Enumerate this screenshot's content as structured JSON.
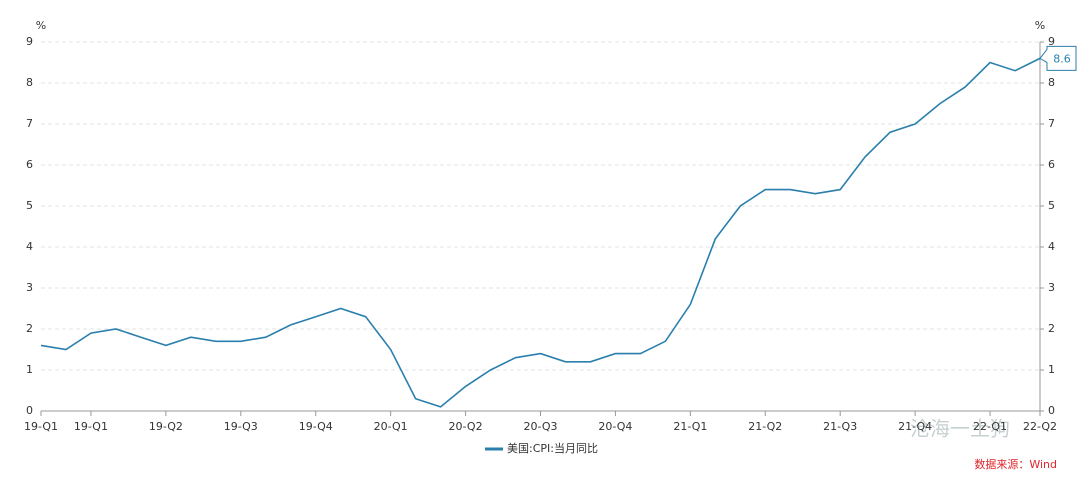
{
  "chart_data": {
    "type": "line",
    "categories": [
      "19-Q1",
      null,
      "19-Q1",
      null,
      null,
      "19-Q2",
      null,
      null,
      "19-Q3",
      null,
      null,
      "19-Q4",
      null,
      null,
      "20-Q1",
      null,
      null,
      "20-Q2",
      null,
      null,
      "20-Q3",
      null,
      null,
      "20-Q4",
      null,
      null,
      "21-Q1",
      null,
      null,
      "21-Q2",
      null,
      null,
      "21-Q3",
      null,
      null,
      "21-Q4",
      null,
      null,
      "22-Q1",
      null,
      "22-Q2"
    ],
    "series": [
      {
        "name": "美国:CPI:当月同比",
        "color": "#2a7fad",
        "values": [
          1.6,
          1.5,
          1.9,
          2.0,
          1.8,
          1.6,
          1.8,
          1.7,
          1.7,
          1.8,
          2.1,
          2.3,
          2.5,
          2.3,
          1.5,
          0.3,
          0.1,
          0.6,
          1.0,
          1.3,
          1.4,
          1.2,
          1.2,
          1.4,
          1.4,
          1.7,
          2.6,
          4.2,
          5.0,
          5.4,
          5.4,
          5.3,
          5.4,
          6.2,
          6.8,
          7.0,
          7.5,
          7.9,
          8.5,
          8.3,
          8.6
        ]
      }
    ],
    "ylabel": "%",
    "y2label": "%",
    "ylim": [
      0,
      9
    ],
    "yticks": [
      0,
      1,
      2,
      3,
      4,
      5,
      6,
      7,
      8,
      9
    ],
    "y2lim": [
      0,
      9
    ],
    "y2ticks": [
      0,
      1,
      2,
      3,
      4,
      5,
      6,
      7,
      8,
      9
    ],
    "grid": true,
    "source": "数据来源：Wind",
    "watermark": "沧海一土狗"
  }
}
